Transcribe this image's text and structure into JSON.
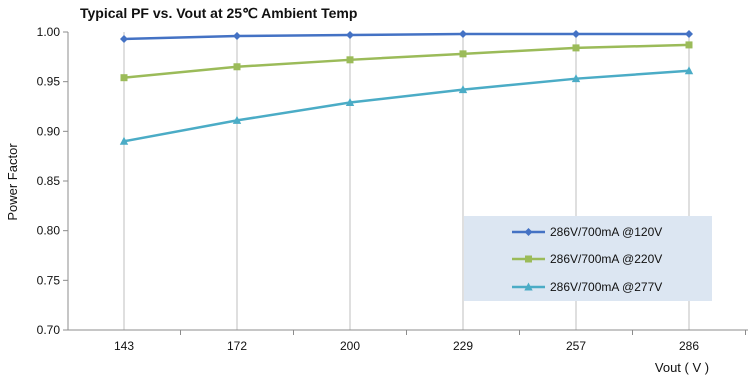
{
  "chart_data": {
    "type": "line",
    "title": "Typical PF vs. Vout at 25℃ Ambient Temp",
    "xlabel": "Vout ( V )",
    "ylabel": "Power Factor",
    "categories": [
      "143",
      "172",
      "200",
      "229",
      "257",
      "286"
    ],
    "ylim": [
      0.7,
      1.0
    ],
    "yticks": [
      "0.70",
      "0.75",
      "0.80",
      "0.85",
      "0.90",
      "0.95",
      "1.00"
    ],
    "grid": "vertical",
    "legend_position": "lower-right",
    "series": [
      {
        "name": "286V/700mA @120V",
        "color": "#4472C4",
        "marker": "diamond",
        "values": [
          0.993,
          0.996,
          0.997,
          0.998,
          0.998,
          0.998
        ]
      },
      {
        "name": "286V/700mA @220V",
        "color": "#9BBB59",
        "marker": "square",
        "values": [
          0.954,
          0.965,
          0.972,
          0.978,
          0.984,
          0.987
        ]
      },
      {
        "name": "286V/700mA @277V",
        "color": "#4BACC6",
        "marker": "triangle",
        "values": [
          0.89,
          0.911,
          0.929,
          0.942,
          0.953,
          0.961
        ]
      }
    ]
  }
}
